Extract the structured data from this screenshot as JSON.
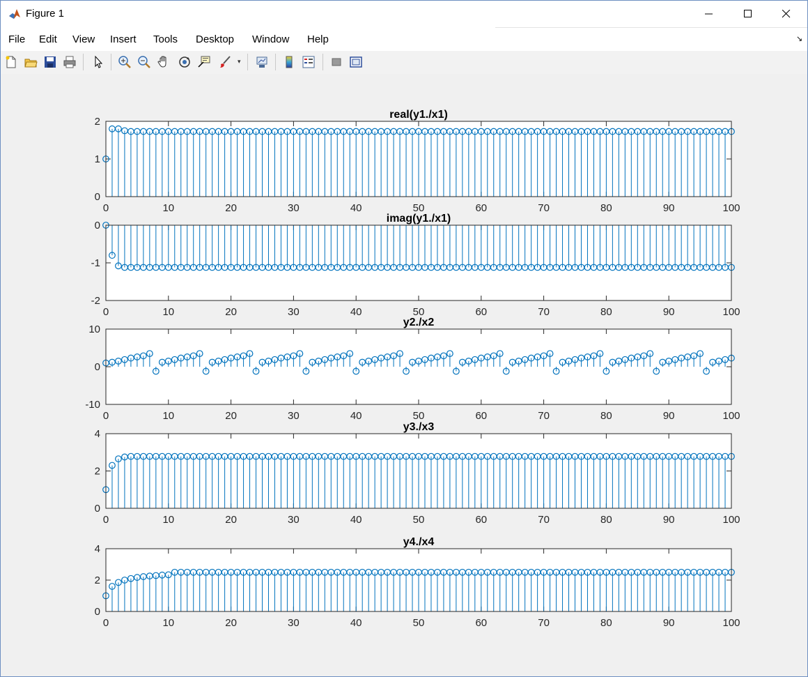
{
  "window": {
    "title": "Figure 1",
    "controls": [
      "minimize-icon",
      "maximize-icon",
      "close-icon"
    ]
  },
  "menu": {
    "items": [
      "File",
      "Edit",
      "View",
      "Insert",
      "Tools",
      "Desktop",
      "Window",
      "Help"
    ],
    "dock_glyph": "↘"
  },
  "toolbar": {
    "buttons": [
      "new-figure-icon",
      "open-file-icon",
      "save-icon",
      "print-icon",
      "pointer-icon",
      "zoom-in-icon",
      "zoom-out-icon",
      "pan-icon",
      "rotate-3d-icon",
      "data-cursor-icon",
      "brush-icon",
      "link-plot-icon",
      "colorbar-icon",
      "legend-icon",
      "hide-plot-tools-icon",
      "show-plot-tools-icon"
    ]
  },
  "colors": {
    "stem": "#0072bd",
    "axes_bg": "#ffffff",
    "figure_bg": "#f0f0f0",
    "axis": "#262626"
  },
  "chart_data": [
    {
      "type": "stem",
      "title": "real(y1./x1)",
      "xlabel": "",
      "ylabel": "",
      "xlim": [
        0,
        100
      ],
      "ylim": [
        0,
        2
      ],
      "xticks": [
        0,
        10,
        20,
        30,
        40,
        50,
        60,
        70,
        80,
        90,
        100
      ],
      "yticks": [
        0,
        1,
        2
      ],
      "series": [
        {
          "pattern": "constant",
          "values": [
            1,
            1.8,
            1.8,
            1.75
          ],
          "rest": 1.73
        }
      ]
    },
    {
      "type": "stem",
      "title": "imag(y1./x1)",
      "xlabel": "",
      "ylabel": "",
      "xlim": [
        0,
        100
      ],
      "ylim": [
        -2,
        0
      ],
      "xticks": [
        0,
        10,
        20,
        30,
        40,
        50,
        60,
        70,
        80,
        90,
        100
      ],
      "yticks": [
        -2,
        -1,
        0
      ],
      "series": [
        {
          "pattern": "constant",
          "values": [
            0,
            -0.8,
            -1.08,
            -1.12
          ],
          "rest": -1.12
        }
      ]
    },
    {
      "type": "stem",
      "title": "y2./x2",
      "xlabel": "",
      "ylabel": "",
      "xlim": [
        0,
        100
      ],
      "ylim": [
        -10,
        10
      ],
      "xticks": [
        0,
        10,
        20,
        30,
        40,
        50,
        60,
        70,
        80,
        90,
        100
      ],
      "yticks": [
        -10,
        0,
        10
      ],
      "series": [
        {
          "pattern": "periodic",
          "period": 8,
          "cycle": [
            1.2,
            1.5,
            1.9,
            2.3,
            2.6,
            2.9,
            3.5,
            6.0
          ],
          "n_end": 100,
          "overrides": {
            "0": 1.0,
            "8": -1.2,
            "16": -1.2,
            "24": -1.2,
            "32": -1.2,
            "40": -1.2,
            "48": -1.2,
            "56": -1.2,
            "64": -1.2,
            "72": -1.2,
            "80": -1.2,
            "88": -1.2,
            "96": -1.2
          }
        }
      ]
    },
    {
      "type": "stem",
      "title": "y3./x3",
      "xlabel": "",
      "ylabel": "",
      "xlim": [
        0,
        100
      ],
      "ylim": [
        0,
        4
      ],
      "xticks": [
        0,
        10,
        20,
        30,
        40,
        50,
        60,
        70,
        80,
        90,
        100
      ],
      "yticks": [
        0,
        2,
        4
      ],
      "series": [
        {
          "pattern": "constant",
          "values": [
            1,
            2.3,
            2.65,
            2.75
          ],
          "rest": 2.78
        }
      ]
    },
    {
      "type": "stem",
      "title": "y4./x4",
      "xlabel": "",
      "ylabel": "",
      "xlim": [
        0,
        100
      ],
      "ylim": [
        0,
        4
      ],
      "xticks": [
        0,
        10,
        20,
        30,
        40,
        50,
        60,
        70,
        80,
        90,
        100
      ],
      "yticks": [
        0,
        2,
        4
      ],
      "series": [
        {
          "pattern": "saturating",
          "values": [
            1,
            1.6,
            1.85,
            2.0,
            2.1,
            2.17,
            2.22,
            2.26,
            2.29,
            2.32,
            2.34
          ],
          "rest": 2.5
        }
      ]
    }
  ]
}
